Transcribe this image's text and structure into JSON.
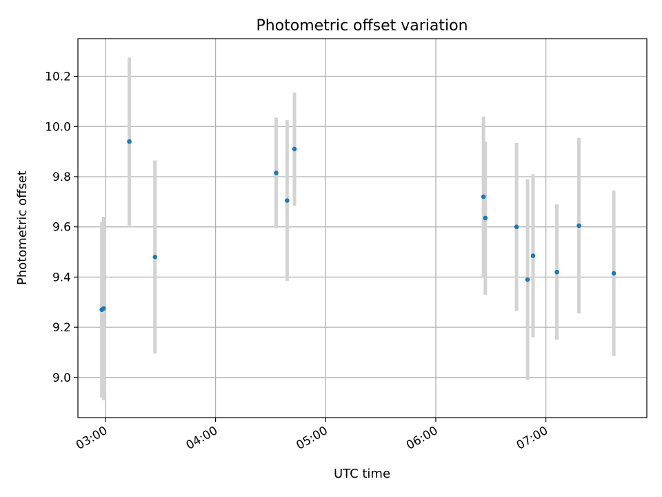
{
  "chart_data": {
    "type": "scatter",
    "title": "Photometric offset variation",
    "xlabel": "UTC time",
    "ylabel": "Photometric offset",
    "grid": true,
    "xlim": [
      "02:45",
      "07:55"
    ],
    "ylim": [
      8.84,
      10.35
    ],
    "x_ticks": [
      "03:00",
      "04:00",
      "05:00",
      "06:00",
      "07:00"
    ],
    "y_ticks": [
      "9.0",
      "9.2",
      "9.4",
      "9.6",
      "9.8",
      "10.0",
      "10.2"
    ],
    "colors": {
      "points": "#1f77b4",
      "errorbars": "#d3d3d3",
      "grid": "#b0b0b0"
    },
    "series": [
      {
        "points": [
          {
            "x": "02:58",
            "y": 9.27,
            "err": 0.35
          },
          {
            "x": "02:59",
            "y": 9.275,
            "err": 0.365
          },
          {
            "x": "03:13",
            "y": 9.94,
            "err": 0.335
          },
          {
            "x": "03:27",
            "y": 9.48,
            "err": 0.385
          },
          {
            "x": "04:33",
            "y": 9.815,
            "err": 0.22
          },
          {
            "x": "04:39",
            "y": 9.705,
            "err": 0.32
          },
          {
            "x": "04:43",
            "y": 9.91,
            "err": 0.225
          },
          {
            "x": "06:26",
            "y": 9.72,
            "err": 0.32
          },
          {
            "x": "06:27",
            "y": 9.635,
            "err": 0.305
          },
          {
            "x": "06:44",
            "y": 9.6,
            "err": 0.335
          },
          {
            "x": "06:50",
            "y": 9.39,
            "err": 0.4
          },
          {
            "x": "06:53",
            "y": 9.485,
            "err": 0.325
          },
          {
            "x": "07:06",
            "y": 9.42,
            "err": 0.27
          },
          {
            "x": "07:18",
            "y": 9.605,
            "err": 0.35
          },
          {
            "x": "07:37",
            "y": 9.415,
            "err": 0.33
          }
        ]
      }
    ]
  }
}
